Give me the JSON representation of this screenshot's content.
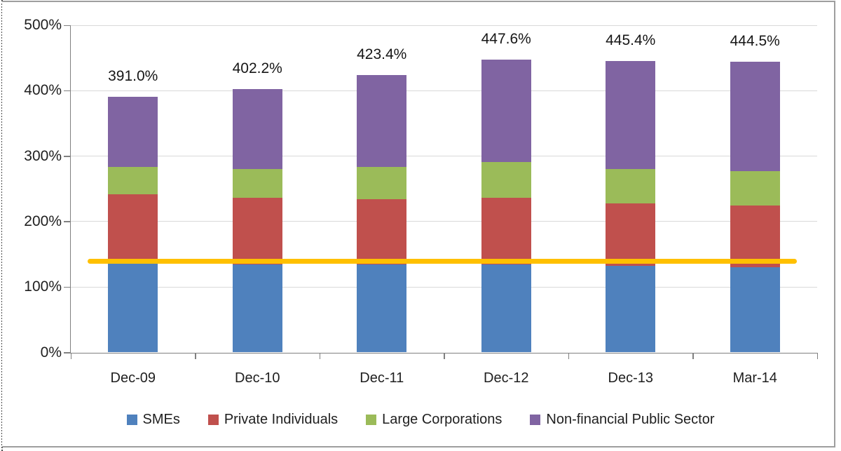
{
  "chart_data": {
    "type": "bar",
    "subtype": "stacked-column",
    "title": "",
    "xlabel": "",
    "ylabel": "",
    "categories": [
      "Dec-09",
      "Dec-10",
      "Dec-11",
      "Dec-12",
      "Dec-13",
      "Mar-14"
    ],
    "series": [
      {
        "name": "SMEs",
        "color": "#4F81BD",
        "values": [
          136.0,
          134.0,
          134.0,
          135.0,
          132.0,
          130.0
        ]
      },
      {
        "name": "Private Individuals",
        "color": "#C0504D",
        "values": [
          106.0,
          102.0,
          100.0,
          101.0,
          96.0,
          95.0
        ]
      },
      {
        "name": "Large Corporations",
        "color": "#9BBB59",
        "values": [
          41.0,
          44.0,
          49.0,
          55.0,
          52.0,
          52.5
        ]
      },
      {
        "name": "Non-financial Public Sector",
        "color": "#8064A2",
        "values": [
          108.0,
          122.2,
          140.4,
          156.6,
          165.4,
          167.0
        ]
      }
    ],
    "totals_labels": [
      "391.0%",
      "402.2%",
      "423.4%",
      "447.6%",
      "445.4%",
      "444.5%"
    ],
    "totals_values": [
      391.0,
      402.2,
      423.4,
      447.6,
      445.4,
      444.5
    ],
    "y_ticks": [
      "500%",
      "400%",
      "300%",
      "200%",
      "100%",
      "0%"
    ],
    "y_tick_values": [
      500,
      400,
      300,
      200,
      100,
      0
    ],
    "ylim": [
      0,
      500
    ],
    "grid": true,
    "legend_position": "bottom",
    "reference_line": {
      "value": 139,
      "color": "#FFC000"
    },
    "colors": {
      "gridline": "#D9D9D9",
      "axis": "#808080",
      "text": "#1f1f1f",
      "frame_border": "#9e9e9e"
    }
  }
}
